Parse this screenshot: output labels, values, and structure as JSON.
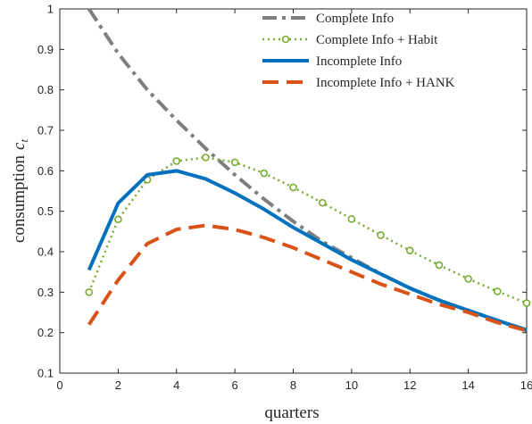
{
  "chart_data": {
    "type": "line",
    "xlabel": "quarters",
    "ylabel": "consumption",
    "ylabel_symbol": "c",
    "ylabel_subscript": "t",
    "xlim": [
      0,
      16
    ],
    "ylim": [
      0.1,
      1.0
    ],
    "xticks": [
      0,
      2,
      4,
      6,
      8,
      10,
      12,
      14,
      16
    ],
    "yticks": [
      0.1,
      0.2,
      0.3,
      0.4,
      0.5,
      0.6,
      0.7,
      0.8,
      0.9,
      1.0
    ],
    "xtick_labels": [
      "0",
      "2",
      "4",
      "6",
      "8",
      "10",
      "12",
      "14",
      "16"
    ],
    "ytick_labels": [
      "0.1",
      "0.2",
      "0.3",
      "0.4",
      "0.5",
      "0.6",
      "0.7",
      "0.8",
      "0.9",
      "1"
    ],
    "grid": false,
    "legend_position": "top-right",
    "x": [
      1,
      2,
      3,
      4,
      5,
      6,
      7,
      8,
      9,
      10,
      11,
      12,
      13,
      14,
      15,
      16
    ],
    "series": [
      {
        "name": "Complete Info",
        "color": "#7f7f7f",
        "style": "dashdot",
        "marker": "none",
        "values": [
          1.0,
          0.89,
          0.8,
          0.725,
          0.655,
          0.59,
          0.53,
          0.475,
          0.425,
          0.385,
          0.345,
          0.31,
          0.28,
          0.255,
          0.23,
          0.205
        ]
      },
      {
        "name": "Complete Info + Habit",
        "color": "#77ac30",
        "style": "dotted",
        "marker": "circle",
        "values": [
          0.3,
          0.48,
          0.578,
          0.624,
          0.633,
          0.621,
          0.594,
          0.559,
          0.521,
          0.481,
          0.441,
          0.403,
          0.367,
          0.333,
          0.302,
          0.273
        ]
      },
      {
        "name": "Incomplete Info",
        "color": "#0072bd",
        "style": "solid",
        "marker": "none",
        "values": [
          0.355,
          0.52,
          0.59,
          0.6,
          0.58,
          0.545,
          0.505,
          0.46,
          0.42,
          0.38,
          0.345,
          0.31,
          0.28,
          0.255,
          0.23,
          0.207
        ]
      },
      {
        "name": "Incomplete Info + HANK",
        "color": "#d95319",
        "style": "dashed",
        "marker": "none",
        "values": [
          0.22,
          0.33,
          0.42,
          0.455,
          0.465,
          0.455,
          0.435,
          0.41,
          0.38,
          0.35,
          0.32,
          0.295,
          0.27,
          0.25,
          0.225,
          0.205
        ]
      }
    ]
  }
}
